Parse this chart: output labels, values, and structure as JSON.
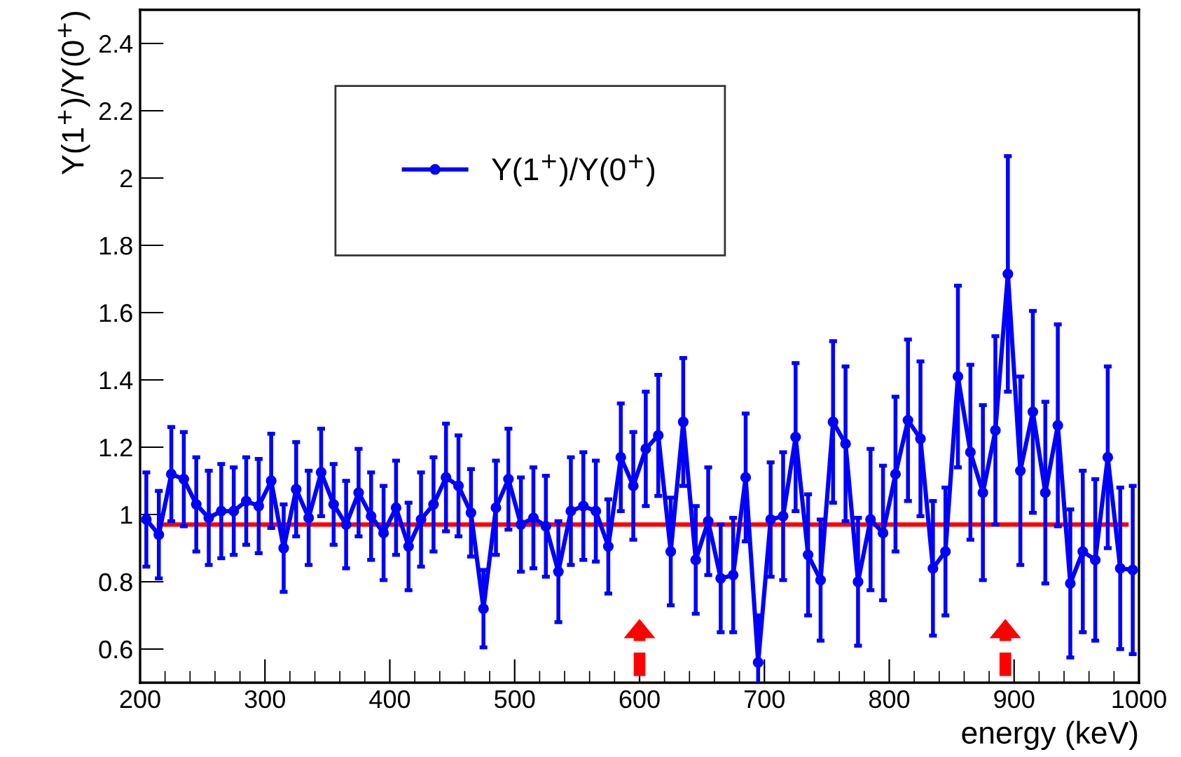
{
  "chart_data": {
    "type": "line",
    "xlabel": "energy (keV)",
    "ylabel": "Y(1$^{+}$)/Y(0$^{+}$)",
    "xlim": [
      200,
      1000
    ],
    "xticks": [
      200,
      300,
      400,
      500,
      600,
      700,
      800,
      900,
      1000
    ],
    "ylim": [
      0.5,
      2.5
    ],
    "yticks": [
      0.6,
      0.8,
      1,
      1.2,
      1.4,
      1.6,
      1.8,
      2,
      2.2,
      2.4
    ],
    "legend": "top left",
    "marker": "circle",
    "line_style": "solid",
    "grid": false,
    "series": [
      {
        "name": "Y(1$^{+}$)/Y(0$^{+}$)",
        "color": "#0000ff",
        "x": [
          205,
          215,
          225,
          235,
          245,
          255,
          265,
          275,
          285,
          295,
          305,
          315,
          325,
          335,
          345,
          355,
          365,
          375,
          385,
          395,
          405,
          415,
          425,
          435,
          445,
          455,
          465,
          475,
          485,
          495,
          505,
          515,
          525,
          535,
          545,
          555,
          565,
          575,
          585,
          595,
          605,
          615,
          625,
          635,
          645,
          655,
          665,
          675,
          685,
          695,
          705,
          715,
          725,
          735,
          745,
          755,
          765,
          775,
          785,
          795,
          805,
          815,
          825,
          835,
          845,
          855,
          865,
          875,
          885,
          895,
          905,
          915,
          925,
          935,
          945,
          955,
          965,
          975,
          985,
          995
        ],
        "values": [
          0.985,
          0.94,
          1.12,
          1.105,
          1.03,
          0.99,
          1.01,
          1.01,
          1.04,
          1.025,
          1.1,
          0.9,
          1.075,
          0.99,
          1.125,
          1.03,
          0.97,
          1.065,
          0.995,
          0.945,
          1.02,
          0.905,
          0.985,
          1.03,
          1.11,
          1.085,
          1.005,
          0.72,
          1.02,
          1.105,
          0.97,
          0.99,
          0.965,
          0.83,
          1.01,
          1.025,
          1.01,
          0.905,
          1.17,
          1.085,
          1.195,
          1.235,
          0.89,
          1.275,
          0.865,
          0.98,
          0.81,
          0.82,
          1.11,
          0.56,
          0.985,
          0.995,
          1.23,
          0.88,
          0.805,
          1.275,
          1.21,
          0.8,
          0.985,
          0.945,
          1.12,
          1.28,
          1.225,
          0.84,
          0.89,
          1.41,
          1.185,
          1.065,
          1.25,
          1.715,
          1.13,
          1.305,
          1.065,
          1.265,
          0.795,
          0.89,
          0.865,
          1.17,
          0.84,
          0.835
        ],
        "errors": [
          0.14,
          0.13,
          0.14,
          0.14,
          0.14,
          0.14,
          0.14,
          0.13,
          0.13,
          0.14,
          0.14,
          0.13,
          0.14,
          0.14,
          0.13,
          0.12,
          0.13,
          0.13,
          0.13,
          0.14,
          0.14,
          0.13,
          0.14,
          0.14,
          0.16,
          0.15,
          0.13,
          0.115,
          0.14,
          0.15,
          0.14,
          0.15,
          0.15,
          0.15,
          0.16,
          0.16,
          0.15,
          0.14,
          0.16,
          0.16,
          0.17,
          0.18,
          0.16,
          0.19,
          0.16,
          0.16,
          0.16,
          0.17,
          0.19,
          0.14,
          0.17,
          0.19,
          0.22,
          0.18,
          0.18,
          0.24,
          0.23,
          0.19,
          0.21,
          0.2,
          0.23,
          0.24,
          0.23,
          0.2,
          0.19,
          0.27,
          0.26,
          0.26,
          0.28,
          0.35,
          0.28,
          0.3,
          0.27,
          0.3,
          0.22,
          0.24,
          0.24,
          0.27,
          0.24,
          0.25
        ]
      },
      {
        "type": "line",
        "color": "#ff0000",
        "marker": "none",
        "x": [
          215,
          990
        ],
        "values": [
          0.97,
          0.97
        ]
      }
    ]
  }
}
